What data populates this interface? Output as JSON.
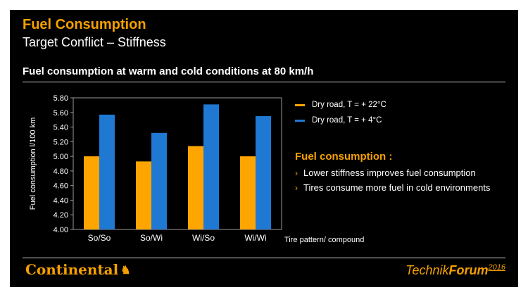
{
  "slide": {
    "title": "Fuel Consumption",
    "subtitle": "Target Conflict – Stiffness",
    "heading": "Fuel consumption at warm and cold conditions at 80 km/h"
  },
  "notes": {
    "title": "Fuel consumption :",
    "bullets": [
      "Lower stiffness improves fuel consumption",
      "Tires consume more fuel in cold environments"
    ]
  },
  "footer": {
    "logo": "Continental",
    "forum_a": "Technik",
    "forum_b": "Forum",
    "forum_year": "2016"
  },
  "colors": {
    "orange": "#ffa500",
    "blue": "#1f78d1",
    "accent": "#f5a000"
  },
  "chart_data": {
    "type": "bar",
    "ylabel": "Fuel consumption l/100 km",
    "xlabel": "Tire pattern/ compound",
    "ylim": [
      4.0,
      5.8
    ],
    "yticks": [
      "4.00",
      "4.20",
      "4.40",
      "4.60",
      "4.80",
      "5.00",
      "5.20",
      "5.40",
      "5.60",
      "5.80"
    ],
    "categories": [
      "So/So",
      "So/Wi",
      "Wi/So",
      "Wi/Wi"
    ],
    "series": [
      {
        "name": "Dry road, T = + 22°C",
        "values": [
          5.0,
          4.93,
          5.14,
          5.0
        ]
      },
      {
        "name": "Dry road, T = + 4°C",
        "values": [
          5.57,
          5.32,
          5.71,
          5.55
        ]
      }
    ],
    "legend": "right"
  }
}
